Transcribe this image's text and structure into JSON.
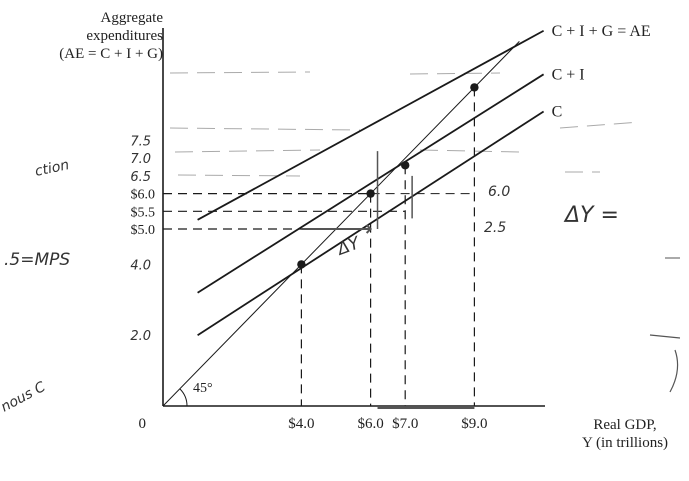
{
  "chart_data": {
    "type": "line",
    "title": "",
    "ylabel_lines": [
      "Aggregate",
      "expenditures",
      "(AE = C + I + G)"
    ],
    "xlabel_lines": [
      "Real GDP,",
      "Y (in trillions)"
    ],
    "origin_label": "0",
    "angle_label": "45°",
    "series": [
      {
        "name": "C + I + G = AE",
        "x": [
          1.0,
          11.0
        ],
        "y": [
          5.26,
          10.6
        ]
      },
      {
        "name": "C + I",
        "x": [
          1.0,
          11.0
        ],
        "y": [
          3.2,
          9.37
        ]
      },
      {
        "name": "C",
        "x": [
          1.0,
          11.0
        ],
        "y": [
          2.0,
          8.32
        ]
      },
      {
        "name": "",
        "x": [
          0.0,
          9.0
        ],
        "y": [
          0.0,
          9.0
        ]
      }
    ],
    "points": [
      {
        "x": 4.0,
        "y": 4.0
      },
      {
        "x": 6.0,
        "y": 6.0
      },
      {
        "x": 7.0,
        "y": 6.8
      },
      {
        "x": 9.0,
        "y": 9.0
      }
    ],
    "x_ticks": [
      {
        "value": 4.0,
        "label": "$4.0"
      },
      {
        "value": 6.0,
        "label": "$6.0"
      },
      {
        "value": 7.0,
        "label": "$7.0"
      },
      {
        "value": 9.0,
        "label": "$9.0"
      }
    ],
    "y_ticks": [
      {
        "value": 6.0,
        "label": "$6.0"
      },
      {
        "value": 5.5,
        "label": "$5.5"
      },
      {
        "value": 5.0,
        "label": "$5.0"
      }
    ],
    "handwritten_y": [
      {
        "value": 7.5,
        "label": "7.5"
      },
      {
        "value": 7.0,
        "label": "7.0"
      },
      {
        "value": 6.5,
        "label": "6.5"
      },
      {
        "value": 4.0,
        "label": "4.0"
      },
      {
        "value": 2.0,
        "label": "2.0"
      }
    ],
    "annotations": [
      "ΔY =",
      "ΔY",
      "6.0",
      "2.5",
      ".5=MPS",
      "ction",
      "nous C"
    ],
    "xlim": [
      0,
      11.5
    ],
    "ylim": [
      0,
      10.8
    ],
    "grid": false,
    "colors": {
      "ink": "#1a1a1a",
      "pencil": "#555555",
      "guide": "#aaaaaa"
    }
  }
}
